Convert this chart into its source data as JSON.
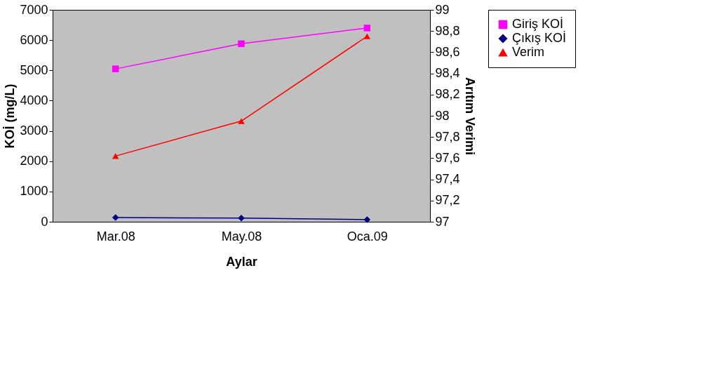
{
  "chart_data": {
    "type": "line",
    "xlabel": "Aylar",
    "ylabel": "KOİ (mg/L)",
    "y2label": "Arıtım Verimi",
    "categories": [
      "Mar.08",
      "May.08",
      "Oca.09"
    ],
    "series": [
      {
        "name": "Giriş KOİ",
        "color": "#ff00ff",
        "marker": "square",
        "line_style": "solid",
        "values": [
          5050,
          5880,
          6400
        ]
      },
      {
        "name": "Çıkış KOİ",
        "color": "#000080",
        "marker": "diamond",
        "line_style": "solid",
        "values": [
          140,
          120,
          70
        ]
      },
      {
        "name": "Verim",
        "color": "#ff0000",
        "marker": "triangle",
        "line_style": "solid",
        "axis": "y2",
        "values": [
          97.62,
          97.95,
          98.75
        ]
      }
    ],
    "ylim": [
      0,
      7000
    ],
    "yticks": [
      0,
      1000,
      2000,
      3000,
      4000,
      5000,
      6000,
      7000
    ],
    "y2lim": [
      97,
      99
    ],
    "y2ticks": [
      97,
      {
        "value": 97.2,
        "label": "97,2"
      },
      {
        "value": 97.4,
        "label": "97,4"
      },
      {
        "value": 97.6,
        "label": "97,6"
      },
      {
        "value": 97.8,
        "label": "97,8"
      },
      98,
      {
        "value": 98.2,
        "label": "98,2"
      },
      {
        "value": 98.4,
        "label": "98,4"
      },
      {
        "value": 98.6,
        "label": "98,6"
      },
      {
        "value": 98.8,
        "label": "98,8"
      },
      99
    ],
    "grid": false,
    "legend": "right"
  }
}
